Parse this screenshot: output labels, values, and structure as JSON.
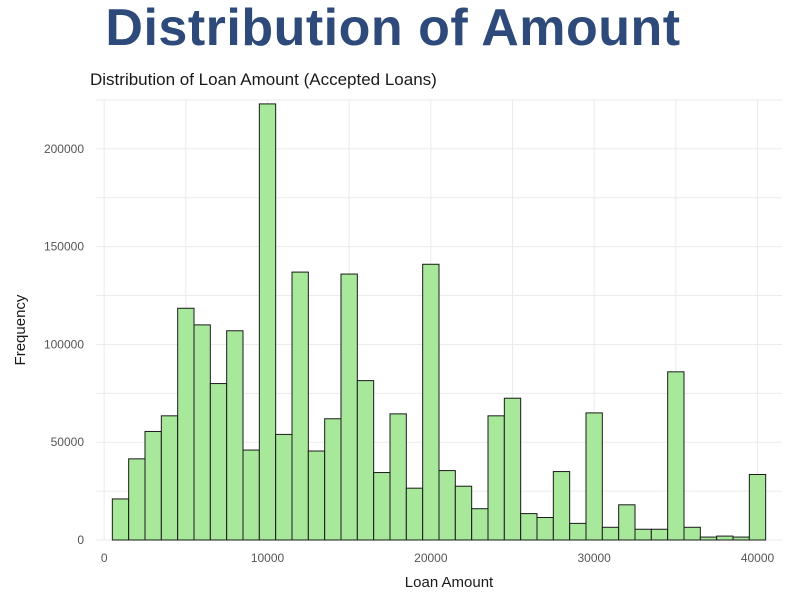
{
  "slide": {
    "title": "Distribution of Amount"
  },
  "colors": {
    "title": "#2d4a7a",
    "bar_fill": "#a7e89a",
    "bar_stroke": "#1a1a1a",
    "grid": "#ebebeb"
  },
  "chart_data": {
    "type": "bar",
    "title": "Distribution of Loan Amount (Accepted Loans)",
    "xlabel": "Loan Amount",
    "ylabel": "Frequency",
    "bin_width": 1000,
    "xlim": [
      -500,
      41500
    ],
    "ylim": [
      0,
      225000
    ],
    "x_ticks": [
      0,
      10000,
      20000,
      30000,
      40000
    ],
    "y_ticks": [
      0,
      50000,
      100000,
      150000,
      200000
    ],
    "grid": true,
    "bins": [
      {
        "x": 1000,
        "y": 21000
      },
      {
        "x": 2000,
        "y": 41500
      },
      {
        "x": 3000,
        "y": 55500
      },
      {
        "x": 4000,
        "y": 63500
      },
      {
        "x": 5000,
        "y": 118500
      },
      {
        "x": 6000,
        "y": 110000
      },
      {
        "x": 7000,
        "y": 80000
      },
      {
        "x": 8000,
        "y": 107000
      },
      {
        "x": 9000,
        "y": 46000
      },
      {
        "x": 10000,
        "y": 223000
      },
      {
        "x": 11000,
        "y": 54000
      },
      {
        "x": 12000,
        "y": 137000
      },
      {
        "x": 13000,
        "y": 45500
      },
      {
        "x": 14000,
        "y": 62000
      },
      {
        "x": 15000,
        "y": 136000
      },
      {
        "x": 16000,
        "y": 81500
      },
      {
        "x": 17000,
        "y": 34500
      },
      {
        "x": 18000,
        "y": 64500
      },
      {
        "x": 19000,
        "y": 26500
      },
      {
        "x": 20000,
        "y": 141000
      },
      {
        "x": 21000,
        "y": 35500
      },
      {
        "x": 22000,
        "y": 27500
      },
      {
        "x": 23000,
        "y": 16000
      },
      {
        "x": 24000,
        "y": 63500
      },
      {
        "x": 25000,
        "y": 72500
      },
      {
        "x": 26000,
        "y": 13500
      },
      {
        "x": 27000,
        "y": 11500
      },
      {
        "x": 28000,
        "y": 35000
      },
      {
        "x": 29000,
        "y": 8500
      },
      {
        "x": 30000,
        "y": 65000
      },
      {
        "x": 31000,
        "y": 6500
      },
      {
        "x": 32000,
        "y": 18000
      },
      {
        "x": 33000,
        "y": 5500
      },
      {
        "x": 34000,
        "y": 5500
      },
      {
        "x": 35000,
        "y": 86000
      },
      {
        "x": 36000,
        "y": 6500
      },
      {
        "x": 37000,
        "y": 1500
      },
      {
        "x": 38000,
        "y": 2000
      },
      {
        "x": 39000,
        "y": 1500
      },
      {
        "x": 40000,
        "y": 33500
      }
    ]
  }
}
